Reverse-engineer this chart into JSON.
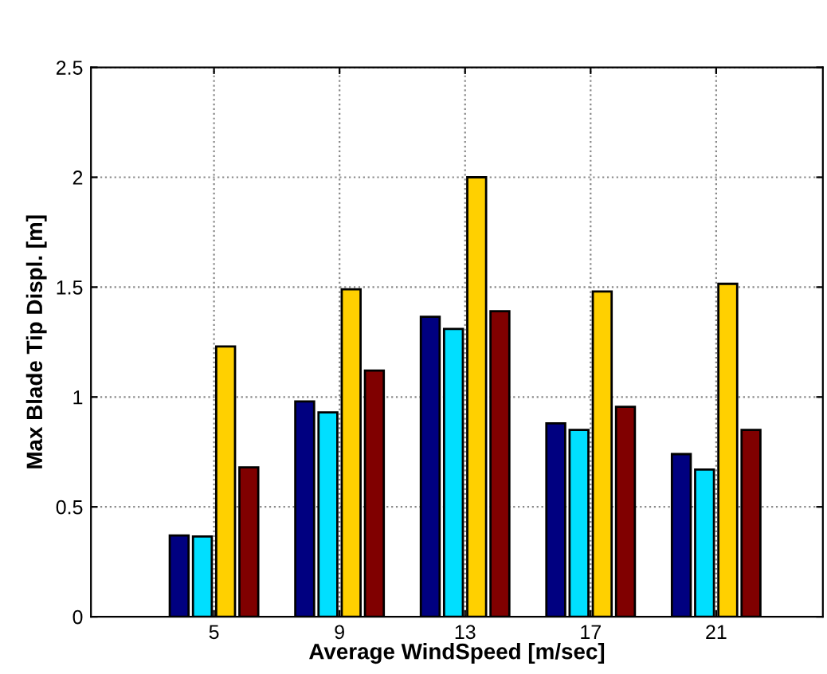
{
  "chart_data": {
    "type": "bar",
    "xlabel": "Average WindSpeed [m/sec]",
    "ylabel": "Max Blade Tip Displ. [m]",
    "categories": [
      "5",
      "9",
      "13",
      "17",
      "21"
    ],
    "series": [
      {
        "color": "#000080",
        "values": [
          0.37,
          0.98,
          1.365,
          0.88,
          0.74
        ]
      },
      {
        "color": "#00dfff",
        "values": [
          0.365,
          0.93,
          1.31,
          0.85,
          0.67
        ]
      },
      {
        "color": "#ffd000",
        "values": [
          1.23,
          1.49,
          2.0,
          1.48,
          1.515
        ]
      },
      {
        "color": "#800000",
        "values": [
          0.68,
          1.12,
          1.39,
          0.955,
          0.85
        ]
      }
    ],
    "ylim": [
      0,
      2.5
    ],
    "yticks": [
      0,
      0.5,
      1,
      1.5,
      2,
      2.5
    ],
    "grid": true,
    "line_style": "dotted"
  }
}
